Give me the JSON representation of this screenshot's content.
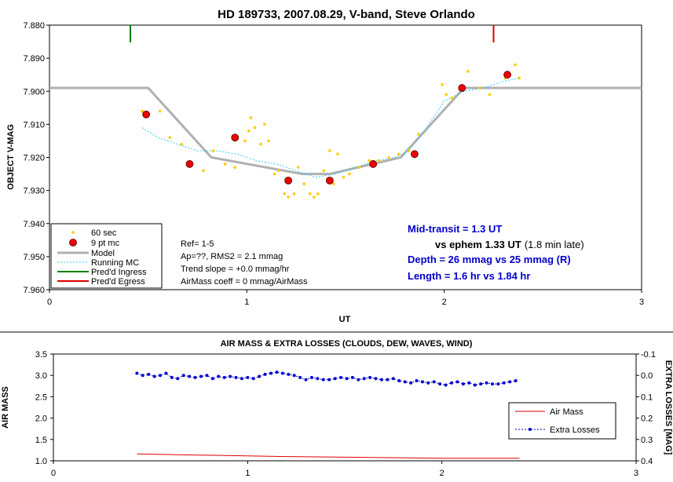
{
  "chart_data": [
    {
      "type": "scatter",
      "title": "HD 189733, 2007.08.29, V-band, Steve Orlando",
      "xlabel": "UT",
      "ylabel": "OBJECT V-MAG",
      "xlim": [
        0,
        3
      ],
      "ylim": [
        7.96,
        7.88
      ],
      "y_inverted": true,
      "x_ticks": [
        "0",
        "1",
        "2",
        "3"
      ],
      "y_ticks": [
        "7.880",
        "7.890",
        "7.900",
        "7.910",
        "7.920",
        "7.930",
        "7.940",
        "7.950",
        "7.960"
      ],
      "grid": false,
      "legend": {
        "placement": "bottom-left",
        "entries": [
          "60 sec",
          "9 pt mc",
          "Model",
          "Running MC",
          "Pred'd Ingress",
          "Pred'd Egress"
        ]
      },
      "notes": [
        "Ref= 1-5",
        "Ap=??, RMS2 = 2.1 mmag",
        "Trend slope = +0.0 mmag/hr",
        "AirMass coeff = 0 mmag/AirMass"
      ],
      "annotations": {
        "mid_label": "Mid-transit = 1.3   UT",
        "ephem_label": "vs ephem 1.33 UT",
        "ephem_note": "(1.8 min late)",
        "depth": "Depth = 26 mmag vs 25 mmag (R)",
        "length": "Length = 1.6 hr vs 1.84 hr"
      },
      "colors": {
        "raw": "#ffcc00",
        "binned": "#ee0000",
        "model": "#b0b0b0",
        "running": "#33ccff",
        "ingress": "#008000",
        "egress": "#dd0000",
        "annotation": "#0000cc"
      },
      "predicted_ingress_ut": 0.41,
      "predicted_egress_ut": 2.25,
      "series": [
        {
          "name": "60 sec",
          "type": "scatter",
          "x": [
            0.47,
            0.56,
            0.61,
            0.67,
            0.72,
            0.78,
            0.83,
            0.89,
            0.94,
            0.99,
            1.01,
            1.02,
            1.04,
            1.07,
            1.09,
            1.11,
            1.14,
            1.16,
            1.19,
            1.21,
            1.24,
            1.26,
            1.29,
            1.32,
            1.34,
            1.36,
            1.39,
            1.42,
            1.44,
            1.46,
            1.49,
            1.52,
            1.57,
            1.62,
            1.67,
            1.72,
            1.77,
            1.82,
            1.87,
            1.99,
            2.01,
            2.04,
            2.12,
            2.18,
            2.23,
            2.31,
            2.36,
            2.38
          ],
          "y": [
            7.906,
            7.906,
            7.914,
            7.916,
            7.922,
            7.924,
            7.918,
            7.922,
            7.923,
            7.915,
            7.912,
            7.908,
            7.911,
            7.916,
            7.91,
            7.915,
            7.925,
            7.924,
            7.931,
            7.932,
            7.931,
            7.923,
            7.928,
            7.931,
            7.932,
            7.931,
            7.924,
            7.918,
            7.928,
            7.919,
            7.926,
            7.925,
            7.923,
            7.921,
            7.921,
            7.92,
            7.919,
            7.918,
            7.913,
            7.898,
            7.901,
            7.902,
            7.894,
            7.899,
            7.901,
            7.896,
            7.892,
            7.896
          ]
        },
        {
          "name": "9 pt mc",
          "type": "scatter",
          "x": [
            0.49,
            0.71,
            0.94,
            1.21,
            1.42,
            1.64,
            1.85,
            2.09,
            2.32
          ],
          "y": [
            7.907,
            7.922,
            7.914,
            7.927,
            7.927,
            7.922,
            7.919,
            7.899,
            7.895
          ]
        },
        {
          "name": "Model",
          "type": "line",
          "x": [
            0.0,
            0.5,
            0.82,
            1.28,
            1.42,
            1.78,
            2.1,
            3.0
          ],
          "y": [
            7.899,
            7.899,
            7.92,
            7.925,
            7.925,
            7.92,
            7.899,
            7.899
          ]
        },
        {
          "name": "Running MC",
          "type": "line",
          "x": [
            0.47,
            0.55,
            0.65,
            0.75,
            0.85,
            0.95,
            1.05,
            1.15,
            1.25,
            1.35,
            1.45,
            1.55,
            1.65,
            1.75,
            1.82,
            1.9,
            2.0,
            2.1,
            2.2,
            2.3,
            2.38
          ],
          "y": [
            7.911,
            7.914,
            7.916,
            7.918,
            7.918,
            7.919,
            7.921,
            7.922,
            7.924,
            7.926,
            7.925,
            7.923,
            7.921,
            7.92,
            7.918,
            7.912,
            7.903,
            7.9,
            7.899,
            7.897,
            7.896
          ]
        }
      ]
    },
    {
      "type": "scatter",
      "title": "AIR MASS & EXTRA LOSSES (CLOUDS, DEW, WAVES, WIND)",
      "xlabel": "",
      "ylabel": "AIR MASS",
      "y2label": "EXTRA LOSSES [MAG]",
      "xlim": [
        0,
        3
      ],
      "ylim": [
        1.0,
        3.5
      ],
      "y2lim": [
        0.4,
        -0.1
      ],
      "x_ticks": [
        "0",
        "1",
        "2",
        "3"
      ],
      "y_ticks": [
        "1.0",
        "1.5",
        "2.0",
        "2.5",
        "3.0",
        "3.5"
      ],
      "y2_ticks": [
        "-0.1",
        "0.0",
        "0.1",
        "0.2",
        "0.3",
        "0.4"
      ],
      "grid": false,
      "legend": {
        "placement": "bottom-right",
        "entries": [
          "Air Mass",
          "Extra Losses"
        ]
      },
      "colors": {
        "airmass": "#dd0000",
        "losses": "#0000cc"
      },
      "series": [
        {
          "name": "Air Mass",
          "type": "line",
          "axis": "left",
          "x": [
            0.43,
            0.8,
            1.2,
            1.6,
            2.0,
            2.4
          ],
          "y": [
            1.16,
            1.13,
            1.1,
            1.08,
            1.06,
            1.06
          ]
        },
        {
          "name": "Extra Losses",
          "type": "line-markers",
          "axis": "right",
          "x": [
            0.43,
            0.46,
            0.49,
            0.52,
            0.55,
            0.58,
            0.61,
            0.64,
            0.67,
            0.7,
            0.73,
            0.76,
            0.79,
            0.82,
            0.85,
            0.88,
            0.91,
            0.94,
            0.97,
            1.0,
            1.03,
            1.06,
            1.09,
            1.12,
            1.15,
            1.18,
            1.21,
            1.24,
            1.27,
            1.3,
            1.33,
            1.36,
            1.39,
            1.42,
            1.45,
            1.48,
            1.51,
            1.54,
            1.57,
            1.6,
            1.63,
            1.66,
            1.69,
            1.72,
            1.75,
            1.78,
            1.81,
            1.84,
            1.87,
            1.9,
            1.93,
            1.96,
            1.99,
            2.02,
            2.05,
            2.08,
            2.11,
            2.14,
            2.17,
            2.2,
            2.23,
            2.26,
            2.29,
            2.32,
            2.35,
            2.38
          ],
          "y": [
            -0.01,
            0.0,
            -0.005,
            0.005,
            0.0,
            -0.01,
            0.01,
            0.015,
            0.0,
            0.005,
            0.01,
            0.005,
            0.0,
            0.015,
            0.005,
            0.01,
            0.005,
            0.01,
            0.015,
            0.01,
            0.015,
            0.005,
            -0.005,
            -0.01,
            -0.015,
            -0.01,
            -0.005,
            0.0,
            0.01,
            0.02,
            0.01,
            0.015,
            0.02,
            0.02,
            0.015,
            0.01,
            0.015,
            0.01,
            0.02,
            0.015,
            0.01,
            0.015,
            0.02,
            0.02,
            0.015,
            0.025,
            0.03,
            0.035,
            0.025,
            0.03,
            0.035,
            0.03,
            0.04,
            0.045,
            0.035,
            0.03,
            0.04,
            0.035,
            0.045,
            0.04,
            0.035,
            0.04,
            0.04,
            0.035,
            0.03,
            0.025
          ]
        }
      ]
    }
  ]
}
